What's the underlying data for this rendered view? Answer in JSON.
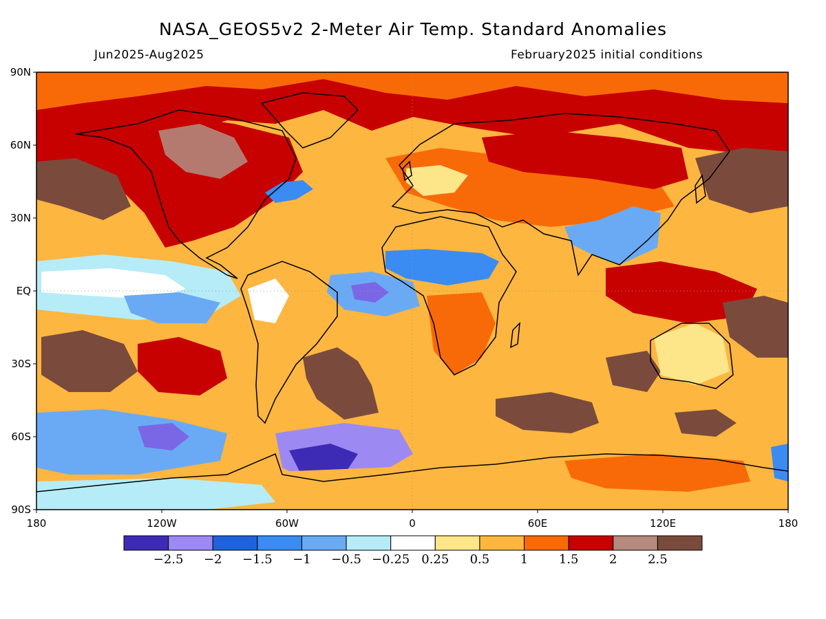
{
  "title": "NASA_GEOS5v2 2-Meter Air Temp. Standard Anomalies",
  "subtitle_left": "Jun2025-Aug2025",
  "subtitle_right": "February2025 initial conditions",
  "map": {
    "lat_ticks": [
      "90N",
      "60N",
      "30N",
      "EQ",
      "30S",
      "60S",
      "90S"
    ],
    "lon_ticks": [
      "180",
      "120W",
      "60W",
      "0",
      "60E",
      "120E",
      "180"
    ],
    "ocean_color": "#fdb640",
    "anomaly_regions": [
      {
        "name": "arctic-warm",
        "color": "#c70000"
      },
      {
        "name": "canada-hot",
        "color": "#b57a6f"
      },
      {
        "name": "nw-atlantic-cool",
        "color": "#2d6fe0"
      },
      {
        "name": "equatorial-pacific-cool",
        "color": "#b6ecf7"
      },
      {
        "name": "equatorial-pacific-white",
        "color": "#ffffff"
      },
      {
        "name": "s-pacific-brown",
        "color": "#7a4b3c"
      },
      {
        "name": "north-pacific-brown",
        "color": "#7a4b3c"
      },
      {
        "name": "sahel-cool",
        "color": "#3a8cf2"
      },
      {
        "name": "india-cool",
        "color": "#6aaaf4"
      },
      {
        "name": "s-atlantic-purple",
        "color": "#7a67e6"
      },
      {
        "name": "weddell-cold",
        "color": "#3d2bb6"
      },
      {
        "name": "ross-cold",
        "color": "#3a8cf2"
      },
      {
        "name": "s-indian-brown",
        "color": "#7a4b3c"
      },
      {
        "name": "maritime-warm",
        "color": "#c70000"
      },
      {
        "name": "antarctica-warm",
        "color": "#fdb640"
      },
      {
        "name": "east-antarctic-orange",
        "color": "#f86a08"
      }
    ]
  },
  "colorbar": {
    "colors": [
      "#3d2bb6",
      "#9d89f2",
      "#1f63dc",
      "#3a8cf2",
      "#6aaaf4",
      "#b6ecf7",
      "#ffffff",
      "#fde58a",
      "#fdb640",
      "#f86a08",
      "#c70000",
      "#b58a7f",
      "#7a4b3c"
    ],
    "labels": [
      "-2.5",
      "-2",
      "-1.5",
      "-1",
      "-0.5",
      "-0.25",
      "0.25",
      "0.5",
      "1",
      "1.5",
      "2",
      "2.5"
    ]
  }
}
